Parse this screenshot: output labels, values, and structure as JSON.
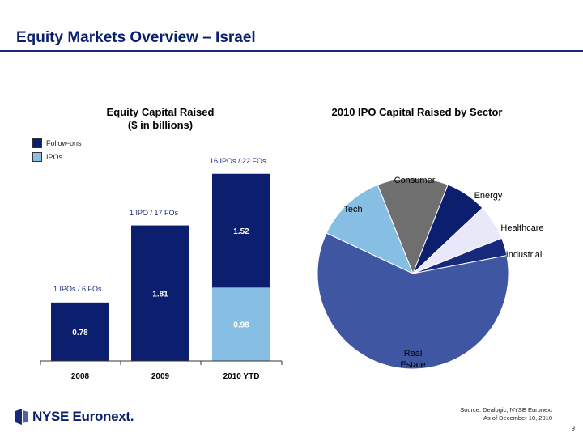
{
  "page": {
    "title": "Equity Markets Overview – Israel",
    "source_line1": "Source: Dealogic; NYSE Euronext",
    "source_line2": "As of December 10, 2010",
    "page_number": "9",
    "logo_text": "NYSE Euronext."
  },
  "colors": {
    "follow_ons": "#0c1e6e",
    "ipos": "#86bfe3",
    "title": "#0a1f6e"
  },
  "chart_data": [
    {
      "type": "bar",
      "stacked": true,
      "title": "Equity Capital Raised\n($ in billions)",
      "title_line1": "Equity Capital Raised",
      "title_line2": "($ in billions)",
      "categories": [
        "2008",
        "2009",
        "2010 YTD"
      ],
      "legend": [
        "Follow-ons",
        "IPOs"
      ],
      "legend_position": "top-left",
      "series": [
        {
          "name": "IPOs",
          "values": [
            0,
            0,
            0.98
          ],
          "labels": [
            "",
            "",
            "0.98"
          ]
        },
        {
          "name": "Follow-ons",
          "values": [
            0.78,
            1.81,
            1.52
          ],
          "labels": [
            "0.78",
            "1.81",
            "1.52"
          ]
        }
      ],
      "annotations": [
        "1 IPOs / 6 FOs",
        "1 IPO / 17 FOs",
        "16 IPOs / 22 FOs"
      ],
      "ylim": [
        0,
        2.6
      ],
      "grid": false
    },
    {
      "type": "pie",
      "title": "2010 IPO Capital Raised by Sector",
      "slices": [
        {
          "label": "Consumer",
          "value": 0.12,
          "color": "#6f6f6f"
        },
        {
          "label": "Energy",
          "value": 0.07,
          "color": "#0c1e6e"
        },
        {
          "label": "Healthcare",
          "value": 0.06,
          "color": "#e8e8f8"
        },
        {
          "label": "Industrial",
          "value": 0.03,
          "color": "#17297a"
        },
        {
          "label": "Real Estate",
          "value": 0.6,
          "color": "#3f56a3"
        },
        {
          "label": "Tech",
          "value": 0.12,
          "color": "#86bfe3"
        }
      ]
    }
  ]
}
